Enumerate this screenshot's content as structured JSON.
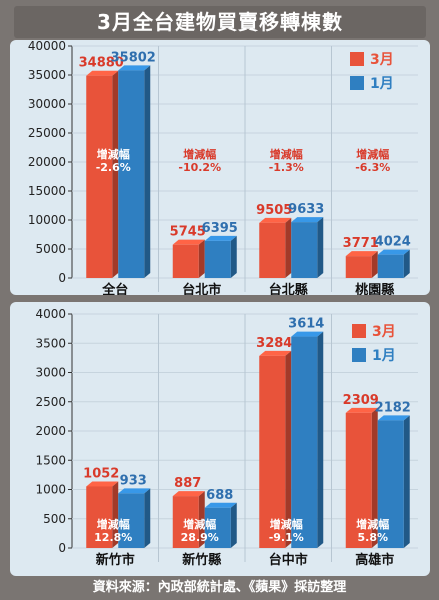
{
  "title": "3月全台建物買賣移轉棟數",
  "source": "資料來源：內政部統計處、《蘋果》採訪整理",
  "colors": {
    "mar": "#e8533a",
    "jan": "#2f7fc1",
    "panel_bg": "#dde9f1",
    "change_mar": "#d93a2a",
    "change_jan": "#ffffff"
  },
  "legend": [
    {
      "name": "3月",
      "color": "#e8533a"
    },
    {
      "name": "1月",
      "color": "#2f7fc1"
    }
  ],
  "change_label": "增減幅",
  "chart_data": [
    {
      "type": "bar",
      "title": "",
      "categories": [
        "全台",
        "台北市",
        "台北縣",
        "桃園縣"
      ],
      "series": [
        {
          "name": "3月",
          "values": [
            34880,
            5745,
            9505,
            3771
          ]
        },
        {
          "name": "1月",
          "values": [
            35802,
            6395,
            9633,
            4024
          ]
        }
      ],
      "changes": [
        "-2.6%",
        "-10.2%",
        "-1.3%",
        "-6.3%"
      ],
      "ylim": [
        0,
        40000
      ],
      "yticks": [
        0,
        5000,
        10000,
        15000,
        20000,
        25000,
        30000,
        35000,
        40000
      ],
      "legend_position": "top-right",
      "grid": true
    },
    {
      "type": "bar",
      "title": "",
      "categories": [
        "新竹市",
        "新竹縣",
        "台中市",
        "高雄市"
      ],
      "series": [
        {
          "name": "3月",
          "values": [
            1052,
            887,
            3284,
            2309
          ]
        },
        {
          "name": "1月",
          "values": [
            933,
            688,
            3614,
            2182
          ]
        }
      ],
      "changes": [
        "12.8%",
        "28.9%",
        "-9.1%",
        "5.8%"
      ],
      "ylim": [
        0,
        4000
      ],
      "yticks": [
        0,
        500,
        1000,
        1500,
        2000,
        2500,
        3000,
        3500,
        4000
      ],
      "legend_position": "top-right",
      "grid": true
    }
  ]
}
